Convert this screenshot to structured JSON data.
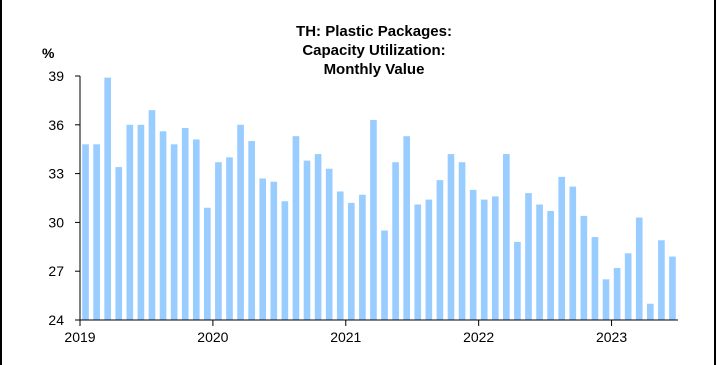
{
  "chart_data": {
    "type": "bar",
    "title": [
      "TH: Plastic Packages:",
      "Capacity Utilization:",
      "Monthly Value"
    ],
    "ylabel": "%",
    "xlabel": "",
    "ylim": [
      24,
      39
    ],
    "yticks": [
      24,
      27,
      30,
      33,
      36,
      39
    ],
    "xtick_labels": [
      "2019",
      "2020",
      "2021",
      "2022",
      "2023"
    ],
    "grid": false,
    "legend": "none",
    "bar_color": "#99ccff",
    "series": [
      {
        "values": [
          34.8,
          34.8,
          38.9,
          33.4,
          36.0,
          36.0,
          36.9,
          35.6,
          34.8,
          35.8,
          35.1,
          30.9,
          33.7,
          34.0,
          36.0,
          35.0,
          32.7,
          32.5,
          31.3,
          35.3,
          33.8,
          34.2,
          33.3,
          31.9,
          31.2,
          31.7,
          36.3,
          29.5,
          33.7,
          35.3,
          31.1,
          31.4,
          32.6,
          34.2,
          33.7,
          32.0,
          31.4,
          31.6,
          34.2,
          28.8,
          31.8,
          31.1,
          30.7,
          32.8,
          32.2,
          30.4,
          29.1,
          26.5,
          27.2,
          28.1,
          30.3,
          25.0,
          28.9,
          27.9
        ]
      }
    ],
    "start": "2019-01",
    "frequency": "monthly"
  }
}
